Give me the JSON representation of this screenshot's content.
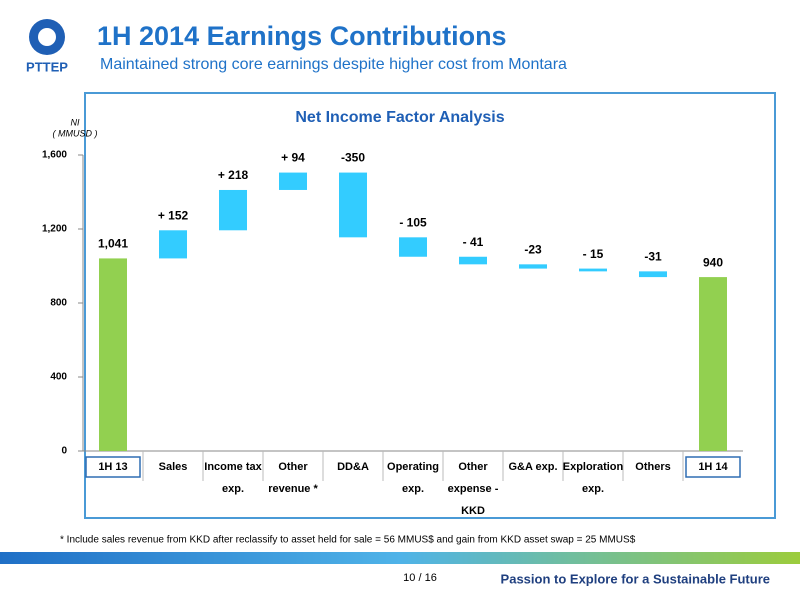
{
  "header": {
    "logo": "PTTEP",
    "title": "1H 2014 Earnings Contributions",
    "subtitle": "Maintained strong core earnings despite higher cost from Montara"
  },
  "chart_data": {
    "type": "waterfall",
    "title": "Net Income Factor Analysis",
    "y_label": [
      "NI",
      "( MMUSD )"
    ],
    "categories": [
      [
        "1H 13"
      ],
      [
        "Sales"
      ],
      [
        "Income tax",
        "exp."
      ],
      [
        "Other",
        "revenue *"
      ],
      [
        "DD&A"
      ],
      [
        "Operating",
        "exp."
      ],
      [
        "Other",
        "expense -",
        "KKD"
      ],
      [
        "G&A exp."
      ],
      [
        "Exploration",
        "exp."
      ],
      [
        "Others"
      ],
      [
        "1H 14"
      ]
    ],
    "values": [
      1041,
      152,
      218,
      94,
      -350,
      -105,
      -41,
      -23,
      -15,
      -31,
      940
    ],
    "value_labels": [
      "1,041",
      "+ 152",
      "+ 218",
      "+ 94",
      "-350",
      "- 105",
      "- 41",
      "-23",
      "- 15",
      "-31",
      "940"
    ],
    "total_color": "#92d050",
    "change_color": "#33ccff",
    "ylim": [
      0,
      1600
    ],
    "yticks": [
      0,
      400,
      800,
      {
        "value": 1200,
        "label": "1,200"
      },
      {
        "value": 1600,
        "label": "1,600"
      }
    ]
  },
  "footnote": "* Include sales revenue from KKD after reclassify to asset held for sale = 56 MMUS$ and gain from KKD asset swap = 25 MMUS$",
  "footer": {
    "page": "10 / 16",
    "tagline": "Passion to Explore for a Sustainable Future"
  }
}
